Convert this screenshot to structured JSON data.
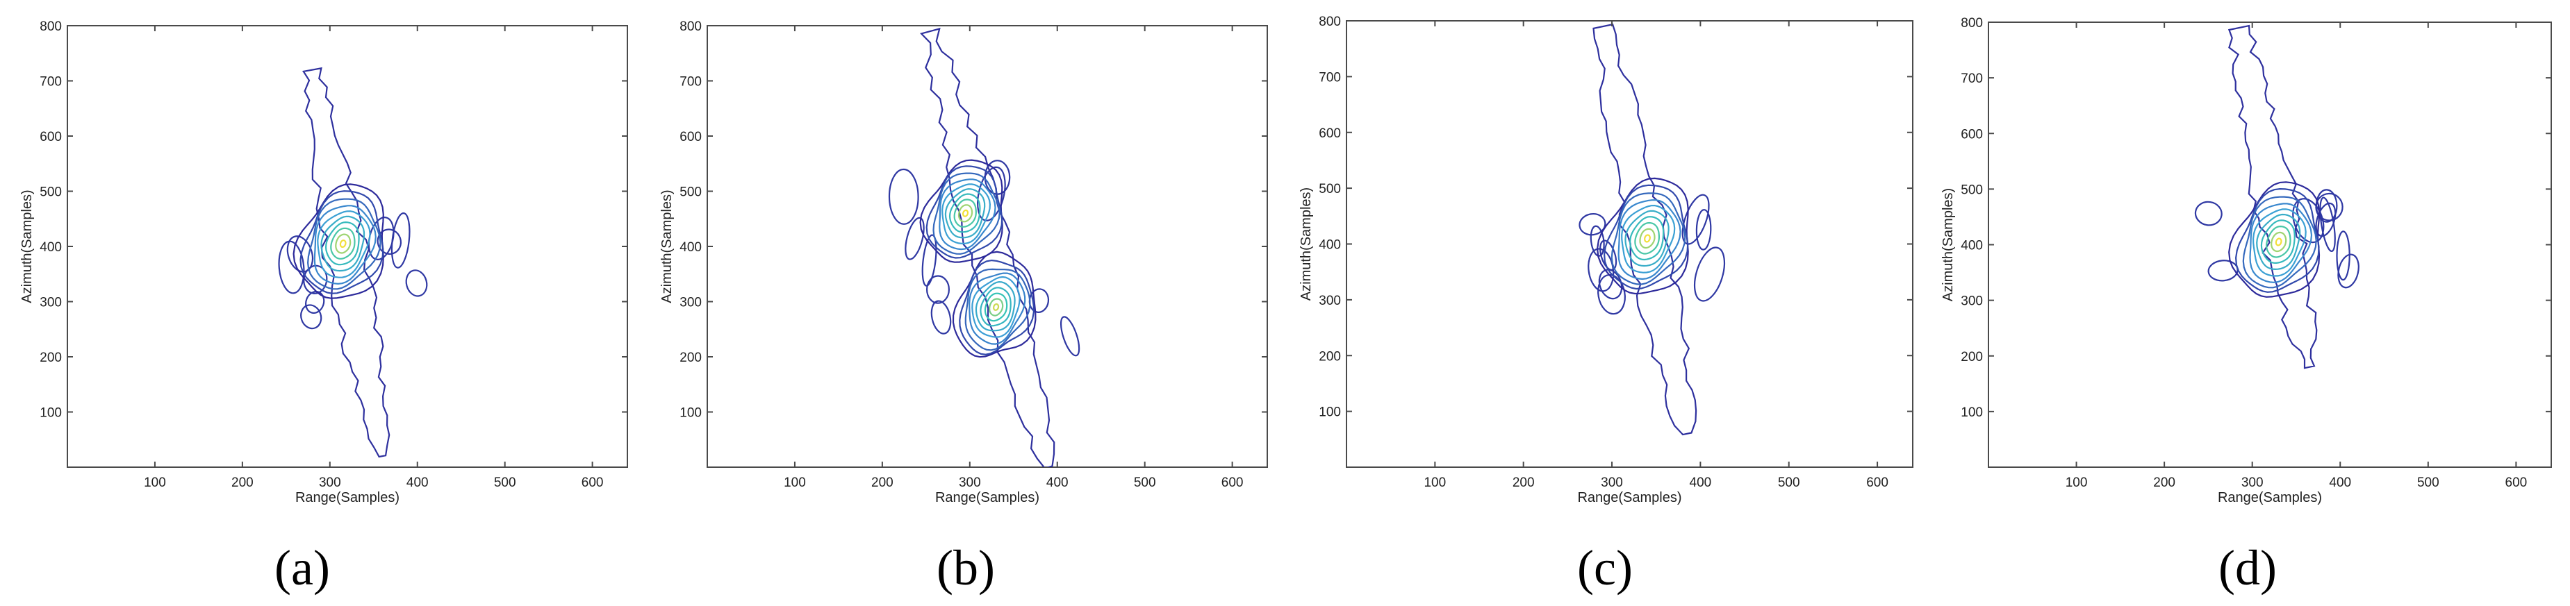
{
  "chart_data": [
    {
      "type": "contour",
      "caption": "(a)",
      "xlabel": "Range(Samples)",
      "ylabel": "Azimuth(Samples)",
      "xlim": [
        0,
        640
      ],
      "ylim": [
        0,
        800
      ],
      "xticks": [
        100,
        200,
        300,
        400,
        500,
        600
      ],
      "yticks": [
        100,
        200,
        300,
        400,
        500,
        600,
        700,
        800
      ],
      "peaks": [
        {
          "x": 315,
          "y": 405,
          "amplitude": 1.0,
          "sigma_major": 95,
          "sigma_minor": 24,
          "angle_deg": -72
        }
      ],
      "extended_tail": {
        "start": [
          280,
          720
        ],
        "end": [
          360,
          20
        ]
      },
      "levels": 10
    },
    {
      "type": "contour",
      "caption": "(b)",
      "xlabel": "Range(Samples)",
      "ylabel": "Azimuth(Samples)",
      "xlim": [
        0,
        640
      ],
      "ylim": [
        0,
        800
      ],
      "xticks": [
        100,
        200,
        300,
        400,
        500,
        600
      ],
      "yticks": [
        100,
        200,
        300,
        400,
        500,
        600,
        700,
        800
      ],
      "peaks": [
        {
          "x": 295,
          "y": 460,
          "amplitude": 1.0,
          "sigma_major": 85,
          "sigma_minor": 22,
          "angle_deg": -72
        },
        {
          "x": 330,
          "y": 290,
          "amplitude": 0.95,
          "sigma_major": 85,
          "sigma_minor": 22,
          "angle_deg": -72
        }
      ],
      "extended_tail": {
        "start": [
          255,
          790
        ],
        "end": [
          390,
          0
        ]
      },
      "levels": 10
    },
    {
      "type": "contour",
      "caption": "(c)",
      "xlabel": "Range(Samples)",
      "ylabel": "Azimuth(Samples)",
      "xlim": [
        0,
        640
      ],
      "ylim": [
        0,
        800
      ],
      "xticks": [
        100,
        200,
        300,
        400,
        500,
        600
      ],
      "yticks": [
        100,
        200,
        300,
        400,
        500,
        600,
        700,
        800
      ],
      "peaks": [
        {
          "x": 340,
          "y": 410,
          "amplitude": 1.0,
          "sigma_major": 95,
          "sigma_minor": 24,
          "angle_deg": -72
        }
      ],
      "extended_tail": {
        "start": [
          290,
          790
        ],
        "end": [
          385,
          60
        ]
      },
      "levels": 10
    },
    {
      "type": "contour",
      "caption": "(d)",
      "xlabel": "Range(Samples)",
      "ylabel": "Azimuth(Samples)",
      "xlim": [
        0,
        640
      ],
      "ylim": [
        0,
        800
      ],
      "xticks": [
        100,
        200,
        300,
        400,
        500,
        600
      ],
      "yticks": [
        100,
        200,
        300,
        400,
        500,
        600,
        700,
        800
      ],
      "peaks": [
        {
          "x": 330,
          "y": 405,
          "amplitude": 1.0,
          "sigma_major": 95,
          "sigma_minor": 24,
          "angle_deg": -72
        }
      ],
      "extended_tail": {
        "start": [
          285,
          790
        ],
        "end": [
          365,
          180
        ]
      },
      "levels": 10
    }
  ],
  "colors": {
    "contour_low": "#2d2a9b",
    "contour_mid": "#3c9bd8",
    "contour_midhigh": "#35c4b5",
    "contour_high": "#f2e03a",
    "axis": "#4a4a4a"
  }
}
